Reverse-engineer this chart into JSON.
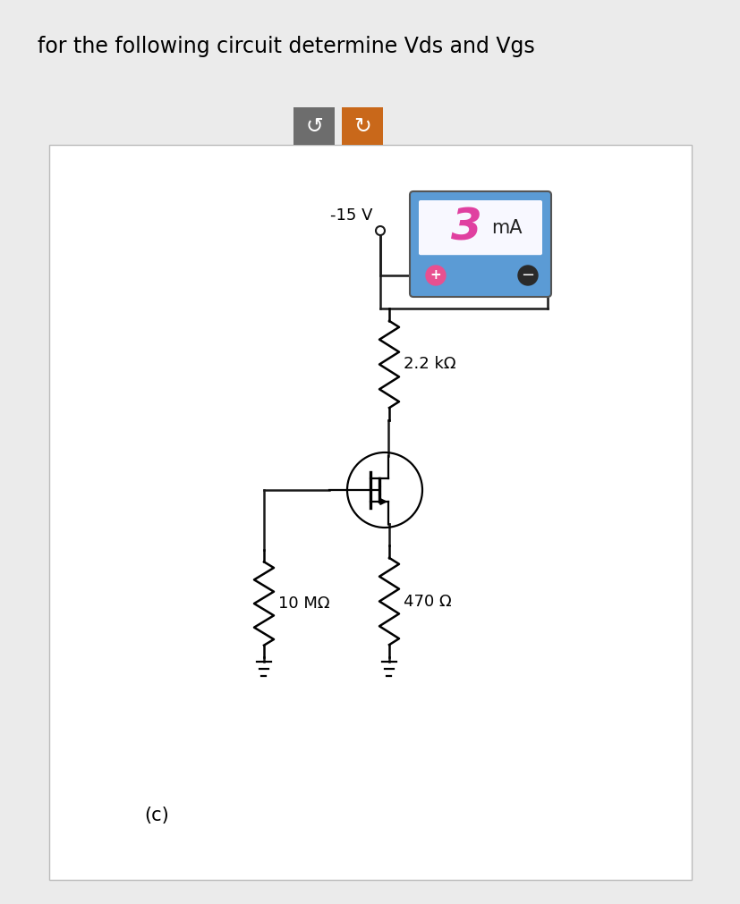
{
  "title": "for the following circuit determine Vds and Vgs",
  "title_fontsize": 17,
  "background_color": "#ebebeb",
  "panel_background": "#ffffff",
  "voltage_label": "-15 V",
  "r1_label": "2.2 kΩ",
  "r2_label": "10 MΩ",
  "r3_label": "470 Ω",
  "part_label": "(c)",
  "btn1_color": "#6d6d6d",
  "btn2_color": "#c9681a",
  "meter_bg": "#5b9bd5",
  "meter_display_bg": "#f8f8ff",
  "meter_text_color": "#e040a0",
  "meter_number": "3",
  "meter_unit": "mA",
  "wire_color": "#1a1a1a",
  "line_width": 1.8
}
